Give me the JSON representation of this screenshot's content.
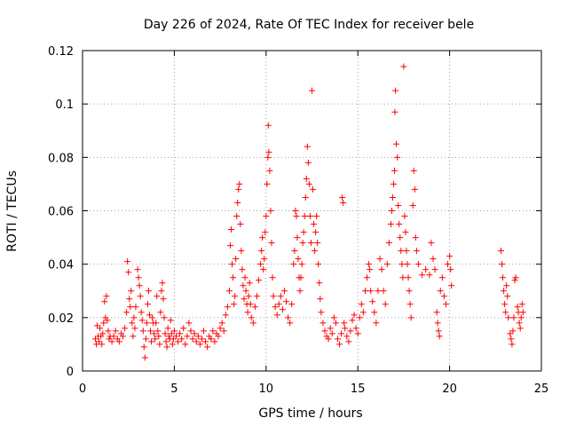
{
  "chart_data": {
    "type": "scatter",
    "title": "Day 226 of 2024, Rate Of TEC Index for receiver bele",
    "xlabel": "GPS time / hours",
    "ylabel": "ROTI / TECUs",
    "xlim": [
      0,
      25
    ],
    "ylim": [
      0,
      0.12
    ],
    "xticks": [
      0,
      5,
      10,
      15,
      20,
      25
    ],
    "yticks": [
      0,
      0.02,
      0.04,
      0.06,
      0.08,
      0.1,
      0.12
    ],
    "xtick_labels": [
      "0",
      "5",
      "10",
      "15",
      "20",
      "25"
    ],
    "ytick_labels": [
      "0",
      "0.02",
      "0.04",
      "0.06",
      "0.08",
      "0.1",
      "0.12"
    ],
    "grid": true,
    "marker": "plus",
    "color": "#ff0000",
    "series": [
      {
        "points": [
          [
            0.7,
            0.012
          ],
          [
            0.75,
            0.01
          ],
          [
            0.8,
            0.017
          ],
          [
            0.85,
            0.013
          ],
          [
            0.9,
            0.011
          ],
          [
            0.95,
            0.016
          ],
          [
            1.0,
            0.013
          ],
          [
            1.05,
            0.01
          ],
          [
            1.1,
            0.014
          ],
          [
            1.15,
            0.018
          ],
          [
            1.2,
            0.026
          ],
          [
            1.25,
            0.02
          ],
          [
            1.3,
            0.028
          ],
          [
            1.35,
            0.019
          ],
          [
            1.4,
            0.015
          ],
          [
            1.45,
            0.012
          ],
          [
            1.5,
            0.013
          ],
          [
            1.6,
            0.011
          ],
          [
            1.7,
            0.013
          ],
          [
            1.8,
            0.015
          ],
          [
            1.9,
            0.012
          ],
          [
            2.0,
            0.011
          ],
          [
            2.1,
            0.014
          ],
          [
            2.2,
            0.013
          ],
          [
            2.3,
            0.016
          ],
          [
            2.4,
            0.022
          ],
          [
            2.45,
            0.041
          ],
          [
            2.5,
            0.037
          ],
          [
            2.55,
            0.027
          ],
          [
            2.6,
            0.024
          ],
          [
            2.65,
            0.03
          ],
          [
            2.7,
            0.018
          ],
          [
            2.75,
            0.013
          ],
          [
            2.8,
            0.02
          ],
          [
            2.85,
            0.016
          ],
          [
            2.9,
            0.024
          ],
          [
            3.0,
            0.038
          ],
          [
            3.05,
            0.035
          ],
          [
            3.1,
            0.032
          ],
          [
            3.15,
            0.028
          ],
          [
            3.2,
            0.022
          ],
          [
            3.25,
            0.019
          ],
          [
            3.3,
            0.015
          ],
          [
            3.35,
            0.009
          ],
          [
            3.4,
            0.005
          ],
          [
            3.45,
            0.012
          ],
          [
            3.5,
            0.018
          ],
          [
            3.55,
            0.025
          ],
          [
            3.6,
            0.03
          ],
          [
            3.65,
            0.021
          ],
          [
            3.7,
            0.015
          ],
          [
            3.75,
            0.011
          ],
          [
            3.8,
            0.02
          ],
          [
            3.85,
            0.018
          ],
          [
            3.9,
            0.014
          ],
          [
            3.95,
            0.012
          ],
          [
            4.0,
            0.018
          ],
          [
            4.05,
            0.028
          ],
          [
            4.1,
            0.015
          ],
          [
            4.15,
            0.013
          ],
          [
            4.2,
            0.01
          ],
          [
            4.25,
            0.022
          ],
          [
            4.3,
            0.03
          ],
          [
            4.35,
            0.033
          ],
          [
            4.4,
            0.027
          ],
          [
            4.45,
            0.02
          ],
          [
            4.5,
            0.014
          ],
          [
            4.55,
            0.011
          ],
          [
            4.6,
            0.009
          ],
          [
            4.65,
            0.016
          ],
          [
            4.7,
            0.013
          ],
          [
            4.75,
            0.012
          ],
          [
            4.8,
            0.019
          ],
          [
            4.85,
            0.014
          ],
          [
            4.9,
            0.01
          ],
          [
            4.95,
            0.012
          ],
          [
            5.0,
            0.015
          ],
          [
            5.1,
            0.013
          ],
          [
            5.2,
            0.011
          ],
          [
            5.3,
            0.014
          ],
          [
            5.4,
            0.012
          ],
          [
            5.5,
            0.016
          ],
          [
            5.6,
            0.01
          ],
          [
            5.7,
            0.013
          ],
          [
            5.8,
            0.018
          ],
          [
            5.9,
            0.015
          ],
          [
            6.0,
            0.012
          ],
          [
            6.1,
            0.014
          ],
          [
            6.2,
            0.011
          ],
          [
            6.3,
            0.013
          ],
          [
            6.4,
            0.01
          ],
          [
            6.5,
            0.012
          ],
          [
            6.6,
            0.015
          ],
          [
            6.7,
            0.011
          ],
          [
            6.8,
            0.009
          ],
          [
            6.9,
            0.013
          ],
          [
            7.0,
            0.012
          ],
          [
            7.1,
            0.015
          ],
          [
            7.2,
            0.011
          ],
          [
            7.3,
            0.014
          ],
          [
            7.4,
            0.013
          ],
          [
            7.5,
            0.016
          ],
          [
            7.6,
            0.018
          ],
          [
            7.7,
            0.015
          ],
          [
            7.8,
            0.021
          ],
          [
            7.9,
            0.024
          ],
          [
            8.0,
            0.03
          ],
          [
            8.05,
            0.047
          ],
          [
            8.1,
            0.053
          ],
          [
            8.15,
            0.04
          ],
          [
            8.2,
            0.035
          ],
          [
            8.25,
            0.025
          ],
          [
            8.3,
            0.028
          ],
          [
            8.35,
            0.042
          ],
          [
            8.4,
            0.058
          ],
          [
            8.45,
            0.063
          ],
          [
            8.5,
            0.068
          ],
          [
            8.55,
            0.07
          ],
          [
            8.6,
            0.055
          ],
          [
            8.65,
            0.045
          ],
          [
            8.7,
            0.038
          ],
          [
            8.75,
            0.032
          ],
          [
            8.8,
            0.027
          ],
          [
            8.85,
            0.035
          ],
          [
            8.9,
            0.03
          ],
          [
            8.95,
            0.025
          ],
          [
            9.0,
            0.022
          ],
          [
            9.05,
            0.028
          ],
          [
            9.1,
            0.033
          ],
          [
            9.15,
            0.025
          ],
          [
            9.2,
            0.02
          ],
          [
            9.3,
            0.018
          ],
          [
            9.4,
            0.024
          ],
          [
            9.5,
            0.028
          ],
          [
            9.6,
            0.034
          ],
          [
            9.7,
            0.04
          ],
          [
            9.75,
            0.045
          ],
          [
            9.8,
            0.05
          ],
          [
            9.85,
            0.038
          ],
          [
            9.9,
            0.042
          ],
          [
            9.95,
            0.052
          ],
          [
            10.0,
            0.058
          ],
          [
            10.05,
            0.07
          ],
          [
            10.1,
            0.08
          ],
          [
            10.12,
            0.092
          ],
          [
            10.15,
            0.082
          ],
          [
            10.2,
            0.075
          ],
          [
            10.25,
            0.06
          ],
          [
            10.3,
            0.048
          ],
          [
            10.35,
            0.035
          ],
          [
            10.4,
            0.028
          ],
          [
            10.5,
            0.024
          ],
          [
            10.6,
            0.021
          ],
          [
            10.7,
            0.025
          ],
          [
            10.8,
            0.028
          ],
          [
            10.9,
            0.023
          ],
          [
            11.0,
            0.03
          ],
          [
            11.1,
            0.026
          ],
          [
            11.2,
            0.02
          ],
          [
            11.3,
            0.018
          ],
          [
            11.4,
            0.025
          ],
          [
            11.5,
            0.04
          ],
          [
            11.55,
            0.045
          ],
          [
            11.6,
            0.06
          ],
          [
            11.65,
            0.058
          ],
          [
            11.7,
            0.05
          ],
          [
            11.75,
            0.042
          ],
          [
            11.8,
            0.035
          ],
          [
            11.85,
            0.03
          ],
          [
            11.9,
            0.035
          ],
          [
            11.95,
            0.04
          ],
          [
            12.0,
            0.048
          ],
          [
            12.05,
            0.052
          ],
          [
            12.1,
            0.058
          ],
          [
            12.15,
            0.065
          ],
          [
            12.2,
            0.072
          ],
          [
            12.25,
            0.084
          ],
          [
            12.3,
            0.078
          ],
          [
            12.35,
            0.07
          ],
          [
            12.4,
            0.058
          ],
          [
            12.45,
            0.048
          ],
          [
            12.5,
            0.105
          ],
          [
            12.55,
            0.068
          ],
          [
            12.6,
            0.055
          ],
          [
            12.65,
            0.045
          ],
          [
            12.7,
            0.052
          ],
          [
            12.75,
            0.058
          ],
          [
            12.8,
            0.048
          ],
          [
            12.85,
            0.04
          ],
          [
            12.9,
            0.033
          ],
          [
            12.95,
            0.027
          ],
          [
            13.0,
            0.022
          ],
          [
            13.1,
            0.018
          ],
          [
            13.2,
            0.015
          ],
          [
            13.3,
            0.013
          ],
          [
            13.4,
            0.012
          ],
          [
            13.5,
            0.016
          ],
          [
            13.6,
            0.014
          ],
          [
            13.7,
            0.02
          ],
          [
            13.8,
            0.018
          ],
          [
            13.9,
            0.012
          ],
          [
            14.0,
            0.01
          ],
          [
            14.1,
            0.014
          ],
          [
            14.15,
            0.065
          ],
          [
            14.2,
            0.063
          ],
          [
            14.25,
            0.018
          ],
          [
            14.3,
            0.016
          ],
          [
            14.4,
            0.013
          ],
          [
            14.5,
            0.011
          ],
          [
            14.6,
            0.015
          ],
          [
            14.7,
            0.019
          ],
          [
            14.8,
            0.021
          ],
          [
            14.9,
            0.016
          ],
          [
            15.0,
            0.014
          ],
          [
            15.1,
            0.02
          ],
          [
            15.2,
            0.025
          ],
          [
            15.3,
            0.022
          ],
          [
            15.4,
            0.03
          ],
          [
            15.5,
            0.035
          ],
          [
            15.6,
            0.04
          ],
          [
            15.65,
            0.038
          ],
          [
            15.7,
            0.03
          ],
          [
            15.8,
            0.026
          ],
          [
            15.9,
            0.022
          ],
          [
            16.0,
            0.018
          ],
          [
            16.1,
            0.03
          ],
          [
            16.2,
            0.042
          ],
          [
            16.3,
            0.038
          ],
          [
            16.4,
            0.03
          ],
          [
            16.5,
            0.025
          ],
          [
            16.6,
            0.04
          ],
          [
            16.7,
            0.048
          ],
          [
            16.8,
            0.055
          ],
          [
            16.85,
            0.06
          ],
          [
            16.9,
            0.065
          ],
          [
            16.95,
            0.07
          ],
          [
            17.0,
            0.075
          ],
          [
            17.02,
            0.097
          ],
          [
            17.05,
            0.105
          ],
          [
            17.1,
            0.085
          ],
          [
            17.15,
            0.08
          ],
          [
            17.2,
            0.062
          ],
          [
            17.25,
            0.055
          ],
          [
            17.3,
            0.05
          ],
          [
            17.35,
            0.045
          ],
          [
            17.4,
            0.04
          ],
          [
            17.45,
            0.035
          ],
          [
            17.5,
            0.114
          ],
          [
            17.55,
            0.058
          ],
          [
            17.6,
            0.052
          ],
          [
            17.65,
            0.045
          ],
          [
            17.7,
            0.04
          ],
          [
            17.75,
            0.035
          ],
          [
            17.8,
            0.03
          ],
          [
            17.85,
            0.025
          ],
          [
            17.9,
            0.02
          ],
          [
            18.0,
            0.062
          ],
          [
            18.05,
            0.075
          ],
          [
            18.1,
            0.068
          ],
          [
            18.15,
            0.05
          ],
          [
            18.2,
            0.045
          ],
          [
            18.3,
            0.04
          ],
          [
            18.5,
            0.036
          ],
          [
            18.7,
            0.038
          ],
          [
            18.9,
            0.036
          ],
          [
            19.0,
            0.048
          ],
          [
            19.1,
            0.042
          ],
          [
            19.2,
            0.038
          ],
          [
            19.3,
            0.022
          ],
          [
            19.35,
            0.018
          ],
          [
            19.4,
            0.015
          ],
          [
            19.45,
            0.013
          ],
          [
            19.5,
            0.03
          ],
          [
            19.6,
            0.035
          ],
          [
            19.7,
            0.028
          ],
          [
            19.8,
            0.025
          ],
          [
            19.9,
            0.04
          ],
          [
            20.0,
            0.043
          ],
          [
            20.05,
            0.038
          ],
          [
            20.1,
            0.032
          ],
          [
            22.8,
            0.045
          ],
          [
            22.85,
            0.04
          ],
          [
            22.9,
            0.035
          ],
          [
            22.95,
            0.03
          ],
          [
            23.0,
            0.025
          ],
          [
            23.05,
            0.022
          ],
          [
            23.1,
            0.032
          ],
          [
            23.15,
            0.028
          ],
          [
            23.2,
            0.02
          ],
          [
            23.3,
            0.014
          ],
          [
            23.35,
            0.012
          ],
          [
            23.4,
            0.01
          ],
          [
            23.45,
            0.015
          ],
          [
            23.5,
            0.02
          ],
          [
            23.55,
            0.034
          ],
          [
            23.6,
            0.035
          ],
          [
            23.7,
            0.024
          ],
          [
            23.75,
            0.022
          ],
          [
            23.8,
            0.018
          ],
          [
            23.85,
            0.016
          ],
          [
            23.9,
            0.02
          ],
          [
            23.95,
            0.025
          ],
          [
            24.0,
            0.022
          ]
        ]
      }
    ]
  }
}
